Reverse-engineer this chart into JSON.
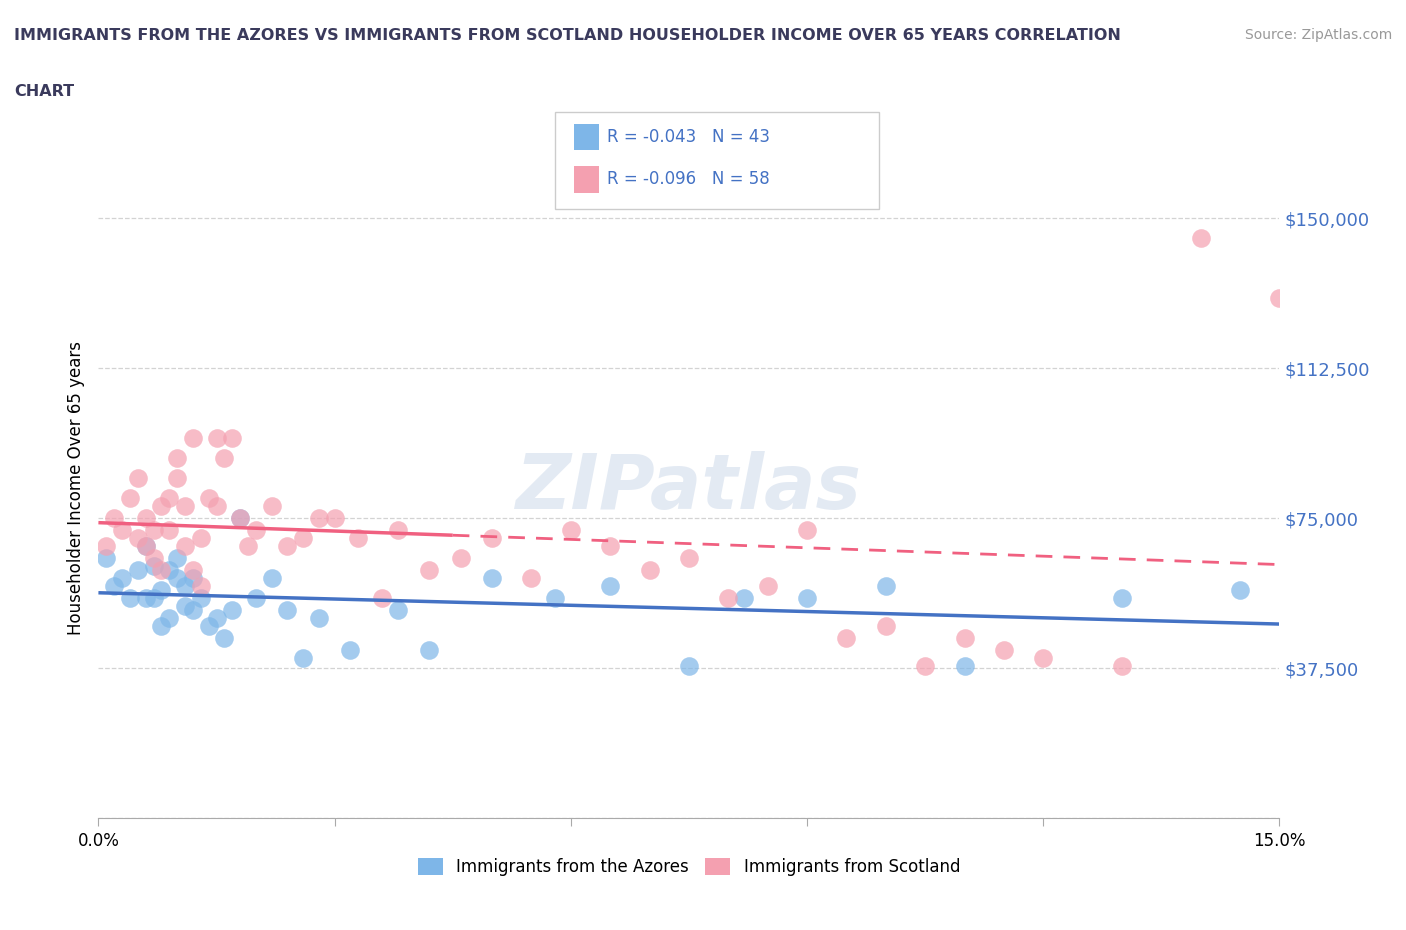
{
  "title_line1": "IMMIGRANTS FROM THE AZORES VS IMMIGRANTS FROM SCOTLAND HOUSEHOLDER INCOME OVER 65 YEARS CORRELATION",
  "title_line2": "CHART",
  "source_text": "Source: ZipAtlas.com",
  "ylabel": "Householder Income Over 65 years",
  "watermark": "ZIPatlas",
  "xlim": [
    0.0,
    0.15
  ],
  "ylim": [
    0,
    165000
  ],
  "yticks": [
    0,
    37500,
    75000,
    112500,
    150000
  ],
  "ytick_labels": [
    "",
    "$37,500",
    "$75,000",
    "$112,500",
    "$150,000"
  ],
  "xticks": [
    0.0,
    0.03,
    0.06,
    0.09,
    0.12,
    0.15
  ],
  "xtick_labels": [
    "0.0%",
    "",
    "",
    "",
    "",
    "15.0%"
  ],
  "legend_labels": [
    "Immigrants from the Azores",
    "Immigrants from Scotland"
  ],
  "azores_color": "#7EB6E8",
  "scotland_color": "#F4A0B0",
  "azores_line_color": "#4472C4",
  "scotland_line_color": "#F06080",
  "background_color": "#FFFFFF",
  "grid_color": "#C8C8C8",
  "title_color": "#3A3A5C",
  "ytick_color": "#4472C4",
  "source_color": "#999999",
  "azores_x": [
    0.001,
    0.002,
    0.003,
    0.004,
    0.005,
    0.006,
    0.006,
    0.007,
    0.007,
    0.008,
    0.008,
    0.009,
    0.009,
    0.01,
    0.01,
    0.011,
    0.011,
    0.012,
    0.012,
    0.013,
    0.014,
    0.015,
    0.016,
    0.017,
    0.018,
    0.02,
    0.022,
    0.024,
    0.026,
    0.028,
    0.032,
    0.038,
    0.042,
    0.05,
    0.058,
    0.065,
    0.075,
    0.082,
    0.09,
    0.1,
    0.11,
    0.13,
    0.145
  ],
  "azores_y": [
    65000,
    58000,
    60000,
    55000,
    62000,
    68000,
    55000,
    63000,
    55000,
    57000,
    48000,
    50000,
    62000,
    65000,
    60000,
    58000,
    53000,
    60000,
    52000,
    55000,
    48000,
    50000,
    45000,
    52000,
    75000,
    55000,
    60000,
    52000,
    40000,
    50000,
    42000,
    52000,
    42000,
    60000,
    55000,
    58000,
    38000,
    55000,
    55000,
    58000,
    38000,
    55000,
    57000
  ],
  "scotland_x": [
    0.001,
    0.002,
    0.003,
    0.004,
    0.005,
    0.005,
    0.006,
    0.006,
    0.007,
    0.007,
    0.008,
    0.008,
    0.009,
    0.009,
    0.01,
    0.01,
    0.011,
    0.011,
    0.012,
    0.012,
    0.013,
    0.013,
    0.014,
    0.015,
    0.015,
    0.016,
    0.017,
    0.018,
    0.019,
    0.02,
    0.022,
    0.024,
    0.026,
    0.028,
    0.03,
    0.033,
    0.036,
    0.038,
    0.042,
    0.046,
    0.05,
    0.055,
    0.06,
    0.065,
    0.07,
    0.075,
    0.08,
    0.085,
    0.09,
    0.095,
    0.1,
    0.105,
    0.11,
    0.115,
    0.12,
    0.13,
    0.14,
    0.15
  ],
  "scotland_y": [
    68000,
    75000,
    72000,
    80000,
    85000,
    70000,
    75000,
    68000,
    72000,
    65000,
    78000,
    62000,
    72000,
    80000,
    85000,
    90000,
    78000,
    68000,
    95000,
    62000,
    70000,
    58000,
    80000,
    78000,
    95000,
    90000,
    95000,
    75000,
    68000,
    72000,
    78000,
    68000,
    70000,
    75000,
    75000,
    70000,
    55000,
    72000,
    62000,
    65000,
    70000,
    60000,
    72000,
    68000,
    62000,
    65000,
    55000,
    58000,
    72000,
    45000,
    48000,
    38000,
    45000,
    42000,
    40000,
    38000,
    145000,
    130000
  ]
}
